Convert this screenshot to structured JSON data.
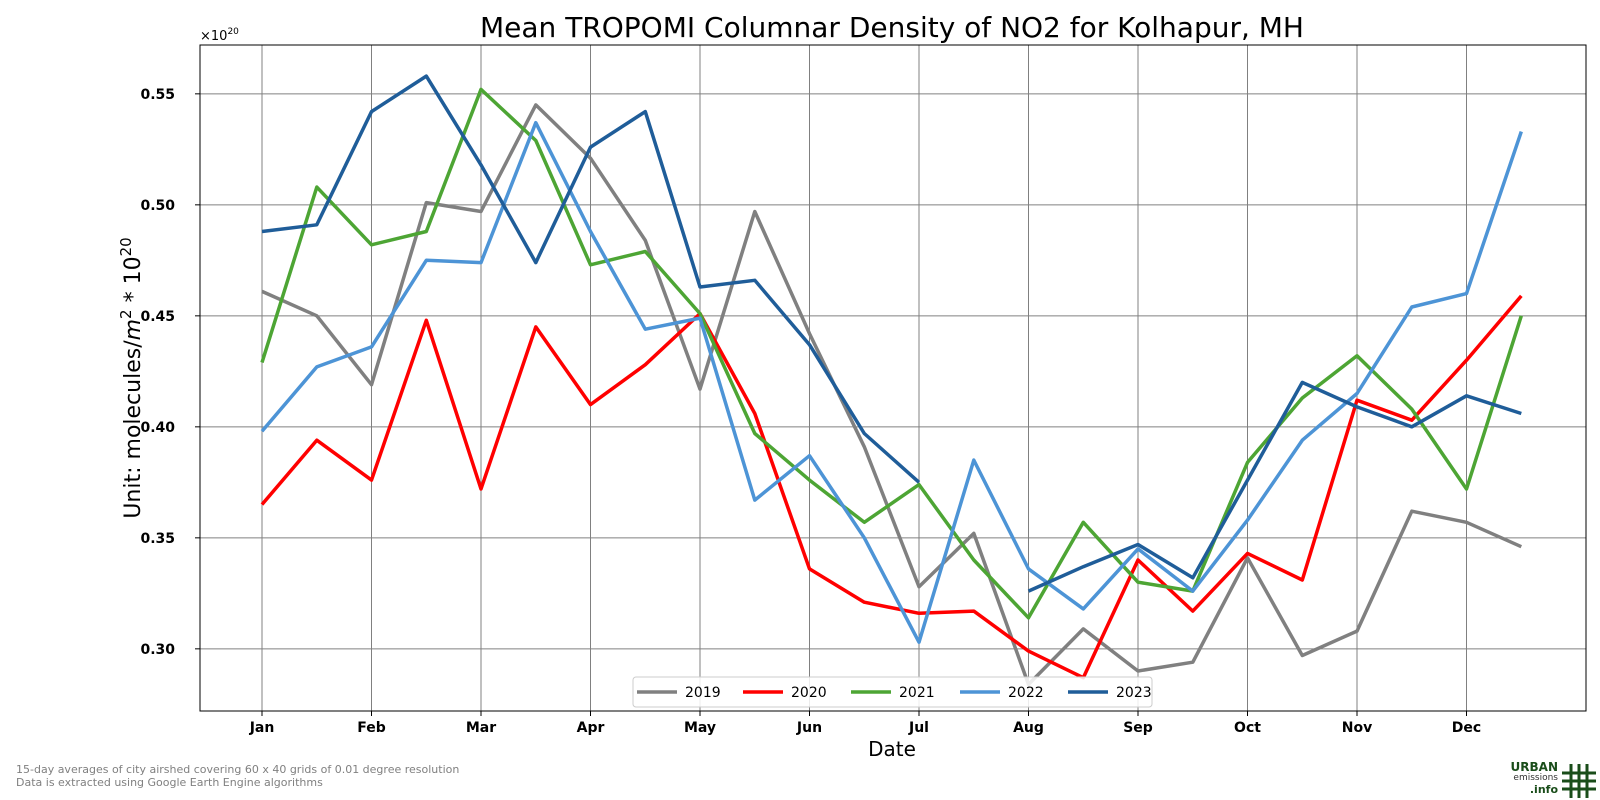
{
  "chart_data": {
    "type": "line",
    "title": "Mean TROPOMI Columnar Density of NO2 for Kolhapur, MH",
    "xlabel": "Date",
    "ylabel_prefix": "Unit: molecules/",
    "ylabel_m": "m",
    "ylabel_exp1": "2",
    "ylabel_mid": " * 10",
    "ylabel_exp2": "20",
    "offset_base": "×10",
    "offset_exp": "20",
    "x_ticks": [
      "Jan",
      "Feb",
      "Mar",
      "Apr",
      "May",
      "Jun",
      "Jul",
      "Aug",
      "Sep",
      "Oct",
      "Nov",
      "Dec"
    ],
    "y_ticks": [
      "0.30",
      "0.35",
      "0.40",
      "0.45",
      "0.50",
      "0.55"
    ],
    "ylim": [
      0.272,
      0.572
    ],
    "grid": true,
    "legend_position": "bottom-center",
    "series": [
      {
        "name": "2019",
        "color": "#808080",
        "start": 0,
        "values": [
          0.461,
          0.45,
          0.419,
          0.501,
          0.497,
          0.545,
          0.521,
          0.484,
          0.417,
          0.497,
          0.442,
          0.391,
          0.328,
          0.352,
          0.284,
          0.309,
          0.29,
          0.294,
          0.341,
          0.297,
          0.308,
          0.362,
          0.357,
          0.346
        ]
      },
      {
        "name": "2020",
        "color": "#ff0000",
        "start": 0,
        "values": [
          0.365,
          0.394,
          0.376,
          0.448,
          0.372,
          0.445,
          0.41,
          0.428,
          0.451,
          0.406,
          0.336,
          0.321,
          0.316,
          0.317,
          0.299,
          0.287,
          0.34,
          0.317,
          0.343,
          0.331,
          0.412,
          0.403,
          0.43,
          0.459
        ]
      },
      {
        "name": "2021",
        "color": "#4da534",
        "start": 0,
        "values": [
          0.429,
          0.508,
          0.482,
          0.488,
          0.552,
          0.529,
          0.473,
          0.479,
          0.451,
          0.397,
          0.376,
          0.357,
          0.374,
          0.34,
          0.314,
          0.357,
          0.33,
          0.326,
          0.384,
          0.413,
          0.432,
          0.408,
          0.372,
          0.45
        ]
      },
      {
        "name": "2022",
        "color": "#4d94d6",
        "start": 0,
        "values": [
          0.398,
          0.427,
          0.436,
          0.475,
          0.474,
          0.537,
          0.488,
          0.444,
          0.449,
          0.367,
          0.387,
          0.35,
          0.303,
          0.385,
          0.336,
          0.318,
          0.345,
          0.326,
          0.358,
          0.394,
          0.415,
          0.454,
          0.46,
          0.533
        ]
      },
      {
        "name": "2023",
        "color": "#1f5d99",
        "start": 0,
        "values": [
          0.488,
          0.491,
          0.542,
          0.558,
          0.518,
          0.474,
          0.526,
          0.542,
          0.463,
          0.466,
          0.437,
          0.397,
          0.375,
          null,
          0.326,
          0.337,
          0.347,
          0.332,
          0.376,
          0.42,
          0.409,
          0.4,
          0.414,
          0.406
        ]
      }
    ]
  },
  "footnotes": {
    "line1": "15-day averages of city airshed covering 60 x 40 grids of 0.01 degree resolution",
    "line2": "Data is extracted using Google Earth Engine algorithms"
  },
  "logo": {
    "line1": "URBAN",
    "line2": "emissions",
    "line3": ".info",
    "color": "#1a4d1a"
  }
}
